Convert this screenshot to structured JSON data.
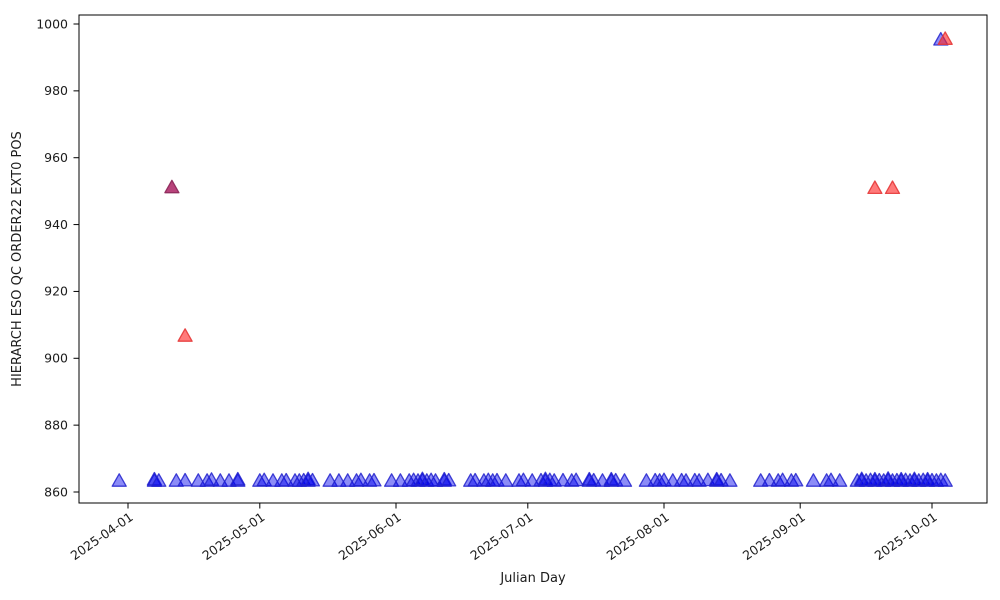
{
  "figure": {
    "background": "#ffffff"
  },
  "chart_data": {
    "type": "scatter",
    "title": "",
    "xlabel": "Julian Day",
    "ylabel": "HIERARCH ESO QC ORDER22 EXT0 POS",
    "marker": "triangle-up",
    "grid": false,
    "legend": "none",
    "x_tick_labels": [
      "2025-04-01",
      "2025-05-01",
      "2025-06-01",
      "2025-07-01",
      "2025-08-01",
      "2025-09-01",
      "2025-10-01"
    ],
    "y_ticks": [
      860,
      880,
      900,
      920,
      940,
      960,
      980,
      1000
    ],
    "xlim": [
      "2025-03-21",
      "2025-10-13"
    ],
    "ylim": [
      856.5,
      1002.7
    ],
    "colors": {
      "blue": {
        "fill": "#0000ee",
        "fill_opacity": 0.45,
        "stroke": "#2222cc",
        "stroke_opacity": 0.85
      },
      "red": {
        "fill": "#ff2222",
        "fill_opacity": 0.6,
        "stroke": "#e63939",
        "stroke_opacity": 0.9
      },
      "red_blue_blend": {
        "fill": "#b23370",
        "fill_opacity": 0.92,
        "stroke": "#8e2a5c",
        "stroke_opacity": 0.95
      }
    },
    "series": [
      {
        "name": "blue-points",
        "color": "blue",
        "points": [
          [
            "2025-03-30",
            863.4
          ],
          [
            "2025-04-07",
            863.4
          ],
          [
            "2025-04-07",
            863.8
          ],
          [
            "2025-04-08",
            863.4
          ],
          [
            "2025-04-12",
            863.4
          ],
          [
            "2025-04-14",
            863.5
          ],
          [
            "2025-04-17",
            863.4
          ],
          [
            "2025-04-19",
            863.4
          ],
          [
            "2025-04-20",
            863.7
          ],
          [
            "2025-04-22",
            863.4
          ],
          [
            "2025-04-24",
            863.4
          ],
          [
            "2025-04-26",
            863.4
          ],
          [
            "2025-04-26",
            863.8
          ],
          [
            "2025-05-01",
            863.4
          ],
          [
            "2025-05-02",
            863.6
          ],
          [
            "2025-05-04",
            863.4
          ],
          [
            "2025-05-06",
            863.4
          ],
          [
            "2025-05-07",
            863.5
          ],
          [
            "2025-05-09",
            863.4
          ],
          [
            "2025-05-10",
            863.4
          ],
          [
            "2025-05-11",
            863.5
          ],
          [
            "2025-05-12",
            863.4
          ],
          [
            "2025-05-12",
            863.9
          ],
          [
            "2025-05-13",
            863.5
          ],
          [
            "2025-05-17",
            863.4
          ],
          [
            "2025-05-19",
            863.4
          ],
          [
            "2025-05-21",
            863.4
          ],
          [
            "2025-05-23",
            863.4
          ],
          [
            "2025-05-24",
            863.6
          ],
          [
            "2025-05-26",
            863.4
          ],
          [
            "2025-05-27",
            863.5
          ],
          [
            "2025-05-31",
            863.4
          ],
          [
            "2025-06-02",
            863.4
          ],
          [
            "2025-06-04",
            863.4
          ],
          [
            "2025-06-05",
            863.6
          ],
          [
            "2025-06-06",
            863.4
          ],
          [
            "2025-06-07",
            863.5
          ],
          [
            "2025-06-07",
            863.9
          ],
          [
            "2025-06-08",
            863.4
          ],
          [
            "2025-06-09",
            863.6
          ],
          [
            "2025-06-10",
            863.4
          ],
          [
            "2025-06-12",
            863.4
          ],
          [
            "2025-06-12",
            863.8
          ],
          [
            "2025-06-13",
            863.5
          ],
          [
            "2025-06-18",
            863.4
          ],
          [
            "2025-06-19",
            863.5
          ],
          [
            "2025-06-21",
            863.4
          ],
          [
            "2025-06-22",
            863.6
          ],
          [
            "2025-06-23",
            863.4
          ],
          [
            "2025-06-24",
            863.5
          ],
          [
            "2025-06-26",
            863.4
          ],
          [
            "2025-06-29",
            863.4
          ],
          [
            "2025-06-30",
            863.6
          ],
          [
            "2025-07-02",
            863.4
          ],
          [
            "2025-07-04",
            863.5
          ],
          [
            "2025-07-05",
            863.4
          ],
          [
            "2025-07-05",
            863.9
          ],
          [
            "2025-07-06",
            863.6
          ],
          [
            "2025-07-07",
            863.4
          ],
          [
            "2025-07-09",
            863.5
          ],
          [
            "2025-07-11",
            863.4
          ],
          [
            "2025-07-12",
            863.6
          ],
          [
            "2025-07-15",
            863.4
          ],
          [
            "2025-07-15",
            863.8
          ],
          [
            "2025-07-16",
            863.5
          ],
          [
            "2025-07-18",
            863.4
          ],
          [
            "2025-07-20",
            863.4
          ],
          [
            "2025-07-20",
            863.8
          ],
          [
            "2025-07-21",
            863.5
          ],
          [
            "2025-07-23",
            863.4
          ],
          [
            "2025-07-28",
            863.4
          ],
          [
            "2025-07-30",
            863.5
          ],
          [
            "2025-07-31",
            863.4
          ],
          [
            "2025-08-01",
            863.6
          ],
          [
            "2025-08-03",
            863.4
          ],
          [
            "2025-08-05",
            863.5
          ],
          [
            "2025-08-06",
            863.4
          ],
          [
            "2025-08-08",
            863.5
          ],
          [
            "2025-08-09",
            863.4
          ],
          [
            "2025-08-11",
            863.6
          ],
          [
            "2025-08-13",
            863.4
          ],
          [
            "2025-08-13",
            863.8
          ],
          [
            "2025-08-14",
            863.5
          ],
          [
            "2025-08-16",
            863.4
          ],
          [
            "2025-08-23",
            863.4
          ],
          [
            "2025-08-25",
            863.5
          ],
          [
            "2025-08-27",
            863.4
          ],
          [
            "2025-08-28",
            863.6
          ],
          [
            "2025-08-30",
            863.4
          ],
          [
            "2025-08-31",
            863.5
          ],
          [
            "2025-09-04",
            863.4
          ],
          [
            "2025-09-07",
            863.4
          ],
          [
            "2025-09-08",
            863.6
          ],
          [
            "2025-09-10",
            863.4
          ],
          [
            "2025-09-14",
            863.4
          ],
          [
            "2025-09-15",
            863.5
          ],
          [
            "2025-09-15",
            863.9
          ],
          [
            "2025-09-16",
            863.4
          ],
          [
            "2025-09-17",
            863.6
          ],
          [
            "2025-09-18",
            863.4
          ],
          [
            "2025-09-18",
            863.8
          ],
          [
            "2025-09-19",
            863.5
          ],
          [
            "2025-09-20",
            863.4
          ],
          [
            "2025-09-21",
            863.6
          ],
          [
            "2025-09-21",
            864.0
          ],
          [
            "2025-09-22",
            863.4
          ],
          [
            "2025-09-23",
            863.5
          ],
          [
            "2025-09-24",
            863.4
          ],
          [
            "2025-09-24",
            863.8
          ],
          [
            "2025-09-25",
            863.6
          ],
          [
            "2025-09-26",
            863.4
          ],
          [
            "2025-09-27",
            863.5
          ],
          [
            "2025-09-27",
            863.9
          ],
          [
            "2025-09-28",
            863.4
          ],
          [
            "2025-09-29",
            863.6
          ],
          [
            "2025-09-30",
            863.4
          ],
          [
            "2025-09-30",
            863.8
          ],
          [
            "2025-10-01",
            863.5
          ],
          [
            "2025-10-02",
            863.4
          ],
          [
            "2025-10-03",
            863.6
          ],
          [
            "2025-10-04",
            863.4
          ],
          [
            "2025-10-03",
            995.4
          ]
        ]
      },
      {
        "name": "blend-points",
        "color": "red_blue_blend",
        "points": [
          [
            "2025-04-11",
            951.2
          ]
        ]
      },
      {
        "name": "red-points",
        "color": "red",
        "points": [
          [
            "2025-04-14",
            906.8
          ],
          [
            "2025-09-18",
            951.0
          ],
          [
            "2025-09-22",
            951.0
          ],
          [
            "2025-10-04",
            995.6
          ]
        ]
      }
    ]
  }
}
